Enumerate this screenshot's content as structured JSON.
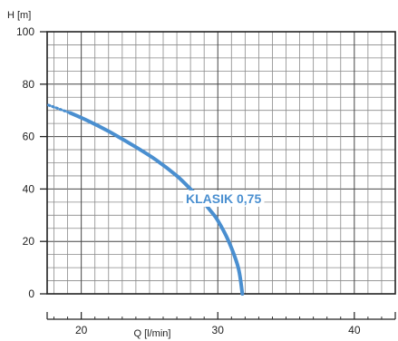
{
  "chart_data": {
    "type": "line",
    "title": "",
    "ylabel": "H [m]",
    "xlabel": "Q [l/min]",
    "xlim": [
      17.5,
      43
    ],
    "ylim": [
      0,
      100
    ],
    "grid": true,
    "x_major_ticks": [
      "20",
      "30",
      "40"
    ],
    "y_ticks": [
      "0",
      "20",
      "40",
      "60",
      "80",
      "100"
    ],
    "series": [
      {
        "name": "KLASIK 0,75",
        "color": "#4a8fd0",
        "dotted_points": [
          [
            17.6,
            72
          ],
          [
            19.2,
            69
          ]
        ],
        "points": [
          [
            19.2,
            69
          ],
          [
            20.5,
            66
          ],
          [
            22,
            62
          ],
          [
            24,
            56
          ],
          [
            25.5,
            51
          ],
          [
            27,
            45
          ],
          [
            28,
            40
          ],
          [
            28.7,
            36.5
          ],
          [
            29.5,
            31.5
          ],
          [
            30,
            28
          ],
          [
            30.8,
            20
          ],
          [
            31.5,
            10
          ],
          [
            31.8,
            0
          ]
        ]
      }
    ]
  }
}
